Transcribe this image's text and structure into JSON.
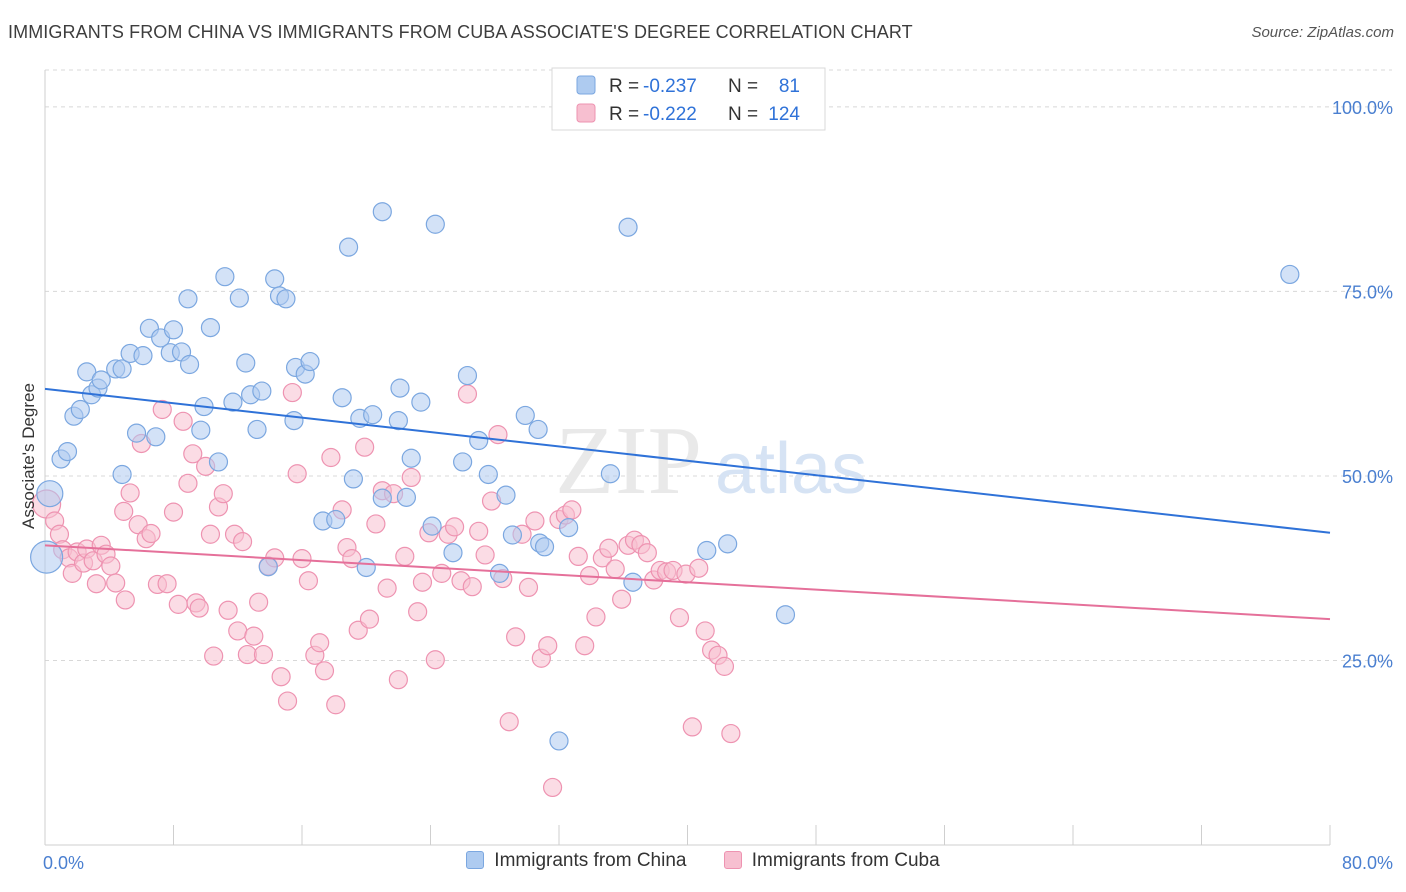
{
  "header": {
    "title": "IMMIGRANTS FROM CHINA VS IMMIGRANTS FROM CUBA ASSOCIATE'S DEGREE CORRELATION CHART",
    "source": "Source: ZipAtlas.com"
  },
  "watermark": {
    "zip": "ZIP",
    "atlas": "atlas"
  },
  "colors": {
    "china_fill": "#aecbf0",
    "china_stroke": "#7ba7e0",
    "china_line": "#2f72d8",
    "cuba_fill": "#f7bfd0",
    "cuba_stroke": "#ee93b1",
    "cuba_line": "#e5709a",
    "tick_label": "#4a7fd0",
    "grid": "#d8d8d8"
  },
  "legend_box": {
    "rows": [
      {
        "r_label": "R =",
        "r_value": "-0.237",
        "n_label": "N =",
        "n_value": "81"
      },
      {
        "r_label": "R =",
        "r_value": "-0.222",
        "n_label": "N =",
        "n_value": "124"
      }
    ]
  },
  "legend_bottom": {
    "china": "Immigrants from China",
    "cuba": "Immigrants from Cuba"
  },
  "chart_data": {
    "type": "scatter",
    "title": "IMMIGRANTS FROM CHINA VS IMMIGRANTS FROM CUBA ASSOCIATE'S DEGREE CORRELATION CHART",
    "xlabel": "",
    "ylabel": "Associate's Degree",
    "xlim": [
      0,
      80
    ],
    "ylim": [
      0,
      105
    ],
    "x_tick_labels": [
      "0.0%",
      "80.0%"
    ],
    "y_ticks": [
      25,
      50,
      75,
      100
    ],
    "y_tick_labels": [
      "25.0%",
      "50.0%",
      "75.0%",
      "100.0%"
    ],
    "grid": "horizontal dashed",
    "legend_position": "top-center",
    "series": [
      {
        "name": "Immigrants from China",
        "R": -0.237,
        "N": 81,
        "trend": {
          "x": [
            0,
            80
          ],
          "y": [
            61.8,
            42.3
          ]
        },
        "points": [
          [
            0.1,
            39.0,
            16
          ],
          [
            0.3,
            47.6,
            13
          ],
          [
            1.0,
            52.3,
            9
          ],
          [
            1.4,
            53.3,
            9
          ],
          [
            1.8,
            58.1,
            9
          ],
          [
            2.2,
            59.0,
            9
          ],
          [
            2.6,
            64.1,
            9
          ],
          [
            2.9,
            61.0,
            9
          ],
          [
            3.3,
            61.9,
            9
          ],
          [
            3.5,
            63.0,
            9
          ],
          [
            4.4,
            64.5,
            9
          ],
          [
            4.8,
            64.5,
            9
          ],
          [
            4.8,
            50.2,
            9
          ],
          [
            5.3,
            66.6,
            9
          ],
          [
            5.7,
            55.8,
            9
          ],
          [
            6.1,
            66.3,
            9
          ],
          [
            6.5,
            70.0,
            9
          ],
          [
            6.9,
            55.3,
            9
          ],
          [
            7.2,
            68.7,
            9
          ],
          [
            7.8,
            66.7,
            9
          ],
          [
            8.0,
            69.8,
            9
          ],
          [
            8.5,
            66.8,
            9
          ],
          [
            8.9,
            74.0,
            9
          ],
          [
            9.0,
            65.1,
            9
          ],
          [
            9.7,
            56.2,
            9
          ],
          [
            9.9,
            59.4,
            9
          ],
          [
            10.3,
            70.1,
            9
          ],
          [
            10.8,
            51.9,
            9
          ],
          [
            11.2,
            77.0,
            9
          ],
          [
            11.7,
            60.0,
            9
          ],
          [
            12.1,
            74.1,
            9
          ],
          [
            12.5,
            65.3,
            9
          ],
          [
            12.8,
            61.0,
            9
          ],
          [
            13.2,
            56.3,
            9
          ],
          [
            13.5,
            61.5,
            9
          ],
          [
            13.9,
            37.7,
            9
          ],
          [
            14.3,
            76.7,
            9
          ],
          [
            14.6,
            74.4,
            9
          ],
          [
            15.0,
            74.0,
            9
          ],
          [
            15.5,
            57.5,
            9
          ],
          [
            15.6,
            64.7,
            9
          ],
          [
            16.2,
            63.8,
            9
          ],
          [
            16.5,
            65.5,
            9
          ],
          [
            17.3,
            43.9,
            9
          ],
          [
            18.1,
            44.1,
            9
          ],
          [
            18.5,
            60.6,
            9
          ],
          [
            18.9,
            81.0,
            9
          ],
          [
            19.2,
            49.6,
            9
          ],
          [
            19.6,
            57.8,
            9
          ],
          [
            20.0,
            37.6,
            9
          ],
          [
            20.4,
            58.3,
            9
          ],
          [
            21.0,
            47.0,
            9
          ],
          [
            21.0,
            85.8,
            9
          ],
          [
            22.0,
            57.5,
            9
          ],
          [
            22.1,
            61.9,
            9
          ],
          [
            22.5,
            47.1,
            9
          ],
          [
            22.8,
            52.4,
            9
          ],
          [
            23.4,
            60.0,
            9
          ],
          [
            24.1,
            43.2,
            9
          ],
          [
            24.3,
            84.1,
            9
          ],
          [
            25.4,
            39.6,
            9
          ],
          [
            26.0,
            51.9,
            9
          ],
          [
            26.3,
            63.6,
            9
          ],
          [
            27.0,
            54.8,
            9
          ],
          [
            27.6,
            50.2,
            9
          ],
          [
            28.3,
            36.8,
            9
          ],
          [
            28.7,
            47.4,
            9
          ],
          [
            29.1,
            42.0,
            9
          ],
          [
            29.9,
            58.2,
            9
          ],
          [
            30.7,
            56.3,
            9
          ],
          [
            30.8,
            40.9,
            9
          ],
          [
            31.1,
            40.4,
            9
          ],
          [
            32.0,
            14.1,
            9
          ],
          [
            32.6,
            43.0,
            9
          ],
          [
            35.2,
            50.3,
            9
          ],
          [
            36.3,
            83.7,
            9
          ],
          [
            36.6,
            35.6,
            9
          ],
          [
            41.2,
            39.9,
            9
          ],
          [
            42.5,
            40.8,
            9
          ],
          [
            46.1,
            31.2,
            9
          ],
          [
            77.5,
            77.3,
            9
          ]
        ]
      },
      {
        "name": "Immigrants from Cuba",
        "R": -0.222,
        "N": 124,
        "trend": {
          "x": [
            0,
            80
          ],
          "y": [
            40.6,
            30.6
          ]
        },
        "points": [
          [
            0.1,
            46.2,
            14
          ],
          [
            0.6,
            43.9,
            9
          ],
          [
            0.9,
            42.1,
            9
          ],
          [
            1.1,
            40.0,
            9
          ],
          [
            1.5,
            38.9,
            9
          ],
          [
            1.7,
            36.8,
            9
          ],
          [
            2.0,
            39.7,
            9
          ],
          [
            2.4,
            38.2,
            9
          ],
          [
            2.6,
            40.1,
            9
          ],
          [
            3.0,
            38.5,
            9
          ],
          [
            3.2,
            35.4,
            9
          ],
          [
            3.5,
            40.6,
            9
          ],
          [
            3.8,
            39.4,
            9
          ],
          [
            4.1,
            37.8,
            9
          ],
          [
            4.4,
            35.5,
            9
          ],
          [
            4.9,
            45.2,
            9
          ],
          [
            5.0,
            33.2,
            9
          ],
          [
            5.3,
            47.7,
            9
          ],
          [
            5.8,
            43.4,
            9
          ],
          [
            6.0,
            54.4,
            9
          ],
          [
            6.3,
            41.5,
            9
          ],
          [
            6.6,
            42.2,
            9
          ],
          [
            7.0,
            35.3,
            9
          ],
          [
            7.3,
            59.0,
            9
          ],
          [
            7.6,
            35.4,
            9
          ],
          [
            8.0,
            45.1,
            9
          ],
          [
            8.3,
            32.6,
            9
          ],
          [
            8.6,
            57.4,
            9
          ],
          [
            8.9,
            49.0,
            9
          ],
          [
            9.2,
            53.0,
            9
          ],
          [
            9.4,
            32.8,
            9
          ],
          [
            9.6,
            32.1,
            9
          ],
          [
            10.0,
            51.3,
            9
          ],
          [
            10.3,
            42.1,
            9
          ],
          [
            10.5,
            25.6,
            9
          ],
          [
            10.8,
            45.8,
            9
          ],
          [
            11.1,
            47.6,
            9
          ],
          [
            11.4,
            31.8,
            9
          ],
          [
            11.8,
            42.1,
            9
          ],
          [
            12.0,
            29.0,
            9
          ],
          [
            12.3,
            41.1,
            9
          ],
          [
            12.6,
            25.8,
            9
          ],
          [
            13.0,
            28.3,
            9
          ],
          [
            13.3,
            32.9,
            9
          ],
          [
            13.6,
            25.8,
            9
          ],
          [
            13.9,
            37.8,
            9
          ],
          [
            14.3,
            38.9,
            9
          ],
          [
            14.7,
            22.8,
            9
          ],
          [
            15.1,
            19.5,
            9
          ],
          [
            15.4,
            61.3,
            9
          ],
          [
            15.7,
            50.3,
            9
          ],
          [
            16.0,
            38.8,
            9
          ],
          [
            16.4,
            35.8,
            9
          ],
          [
            16.8,
            25.7,
            9
          ],
          [
            17.1,
            27.4,
            9
          ],
          [
            17.4,
            23.6,
            9
          ],
          [
            17.8,
            52.5,
            9
          ],
          [
            18.1,
            19.0,
            9
          ],
          [
            18.5,
            45.4,
            9
          ],
          [
            18.8,
            40.3,
            9
          ],
          [
            19.1,
            38.8,
            9
          ],
          [
            19.5,
            29.1,
            9
          ],
          [
            19.9,
            53.9,
            9
          ],
          [
            20.2,
            30.6,
            9
          ],
          [
            20.6,
            43.5,
            9
          ],
          [
            21.0,
            48.0,
            9
          ],
          [
            21.3,
            34.8,
            9
          ],
          [
            21.7,
            47.6,
            9
          ],
          [
            22.0,
            22.4,
            9
          ],
          [
            22.4,
            39.1,
            9
          ],
          [
            22.8,
            49.8,
            9
          ],
          [
            23.2,
            31.6,
            9
          ],
          [
            23.5,
            35.6,
            9
          ],
          [
            23.9,
            42.3,
            9
          ],
          [
            24.3,
            25.1,
            9
          ],
          [
            24.7,
            36.8,
            9
          ],
          [
            25.1,
            42.1,
            9
          ],
          [
            25.5,
            43.1,
            9
          ],
          [
            25.9,
            35.8,
            9
          ],
          [
            26.3,
            61.1,
            9
          ],
          [
            26.6,
            35.0,
            9
          ],
          [
            27.0,
            42.5,
            9
          ],
          [
            27.4,
            39.3,
            9
          ],
          [
            27.8,
            46.6,
            9
          ],
          [
            28.2,
            55.6,
            9
          ],
          [
            28.5,
            36.1,
            9
          ],
          [
            28.9,
            16.7,
            9
          ],
          [
            29.3,
            28.2,
            9
          ],
          [
            29.7,
            42.1,
            9
          ],
          [
            30.1,
            34.9,
            9
          ],
          [
            30.5,
            43.9,
            9
          ],
          [
            30.9,
            25.3,
            9
          ],
          [
            31.3,
            27.0,
            9
          ],
          [
            31.6,
            7.8,
            9
          ],
          [
            32.0,
            44.1,
            9
          ],
          [
            32.4,
            44.7,
            9
          ],
          [
            32.8,
            45.4,
            9
          ],
          [
            33.2,
            39.1,
            9
          ],
          [
            33.6,
            27.0,
            9
          ],
          [
            33.9,
            36.5,
            9
          ],
          [
            34.3,
            30.9,
            9
          ],
          [
            34.7,
            38.9,
            9
          ],
          [
            35.1,
            40.2,
            9
          ],
          [
            35.5,
            37.4,
            9
          ],
          [
            35.9,
            33.3,
            9
          ],
          [
            36.3,
            40.6,
            9
          ],
          [
            36.7,
            41.3,
            9
          ],
          [
            37.1,
            40.7,
            9
          ],
          [
            37.5,
            39.6,
            9
          ],
          [
            37.9,
            35.9,
            9
          ],
          [
            38.3,
            37.2,
            9
          ],
          [
            38.7,
            37.0,
            9
          ],
          [
            39.1,
            37.2,
            9
          ],
          [
            39.5,
            30.8,
            9
          ],
          [
            39.9,
            36.7,
            9
          ],
          [
            40.3,
            16.0,
            9
          ],
          [
            40.7,
            37.5,
            9
          ],
          [
            41.1,
            29.0,
            9
          ],
          [
            41.5,
            26.4,
            9
          ],
          [
            41.9,
            25.7,
            9
          ],
          [
            42.3,
            24.2,
            9
          ],
          [
            42.7,
            15.1,
            9
          ]
        ]
      }
    ]
  }
}
